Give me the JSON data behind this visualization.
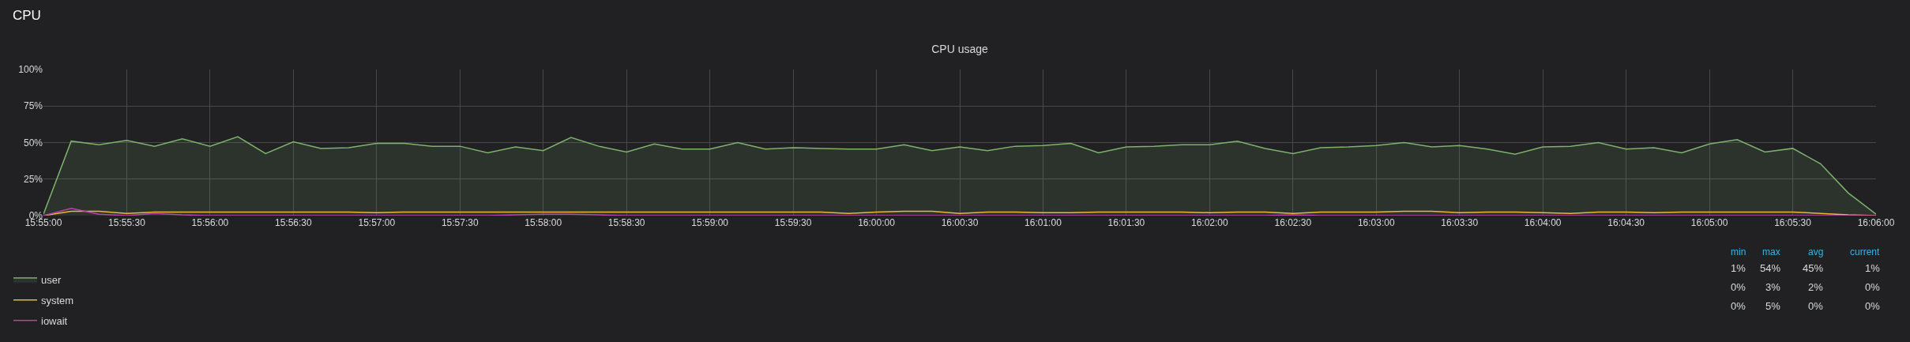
{
  "chart_data": {
    "type": "line",
    "title": "CPU usage",
    "categories": [
      "15:55:00",
      null,
      null,
      "15:55:30",
      null,
      null,
      "15:56:00",
      null,
      null,
      "15:56:30",
      null,
      null,
      "15:57:00",
      null,
      null,
      "15:57:30",
      null,
      null,
      "15:58:00",
      null,
      null,
      "15:58:30",
      null,
      null,
      "15:59:00",
      null,
      null,
      "15:59:30",
      null,
      null,
      "16:00:00",
      null,
      null,
      "16:00:30",
      null,
      null,
      "16:01:00",
      null,
      null,
      "16:01:30",
      null,
      null,
      "16:02:00",
      null,
      null,
      "16:02:30",
      null,
      null,
      "16:03:00",
      null,
      null,
      "16:03:30",
      null,
      null,
      "16:04:00",
      null,
      null,
      "16:04:30",
      null,
      null,
      "16:05:00",
      null,
      null,
      "16:05:30",
      null,
      null,
      "16:06:00"
    ],
    "series": [
      {
        "name": "user",
        "type": "area",
        "color": "#7eb26d",
        "values": [
          1,
          51,
          48.5,
          51.5,
          47.5,
          52.5,
          47.5,
          54,
          42.5,
          50.5,
          46,
          46.5,
          49.5,
          49.5,
          47.5,
          47.5,
          43,
          47,
          44.5,
          53.5,
          47.5,
          43.5,
          49,
          45.5,
          45.5,
          50,
          45.5,
          46.5,
          46,
          45.5,
          45.5,
          48.5,
          44.5,
          47,
          44.5,
          47.5,
          48,
          49.5,
          43,
          47,
          47.5,
          48.5,
          48.5,
          51,
          46,
          42.5,
          46.5,
          47,
          48,
          50,
          47,
          48,
          45.5,
          42,
          47,
          47.5,
          50,
          45.5,
          46.5,
          43,
          49,
          52,
          43.5,
          46,
          35.5,
          15.5,
          1
        ]
      },
      {
        "name": "system",
        "color": "#eab839",
        "values": [
          0,
          3,
          3,
          1.5,
          2.5,
          2.5,
          2.5,
          2.5,
          2.5,
          2.5,
          2.5,
          2.5,
          2,
          2.5,
          2.5,
          2.5,
          2.5,
          2.5,
          2.5,
          2.5,
          2.5,
          2.5,
          2.5,
          2.5,
          2.5,
          2.5,
          2.5,
          2.5,
          2.5,
          1.5,
          2.5,
          3,
          3,
          1.5,
          2.5,
          2.5,
          2,
          2,
          2.5,
          2.5,
          2.5,
          2.5,
          2,
          2.5,
          2.5,
          1.5,
          2.5,
          2.5,
          2.5,
          3,
          3,
          2,
          2.5,
          2.5,
          2,
          1.5,
          2.5,
          2.5,
          2,
          2.5,
          2.5,
          2.5,
          2.5,
          2.5,
          1.5,
          0.5,
          0
        ]
      },
      {
        "name": "iowait",
        "color": "#ba43a9",
        "values": [
          0,
          5,
          1,
          0,
          1.5,
          0.5,
          0,
          0,
          0,
          0,
          0,
          0,
          0,
          0,
          0,
          0,
          0,
          0.5,
          1,
          1,
          0.5,
          0,
          0,
          0,
          0,
          0,
          0,
          0,
          0,
          0,
          0,
          0,
          0,
          0,
          0,
          0,
          0,
          0,
          0,
          0,
          0,
          0,
          0,
          0,
          0,
          0.5,
          0,
          0,
          0,
          0,
          0,
          0,
          0,
          0,
          0,
          0,
          0,
          0,
          0,
          0,
          0,
          0,
          0,
          0,
          0,
          0,
          0
        ]
      }
    ],
    "ylim": [
      0,
      100
    ],
    "yticks": [
      {
        "value": 0,
        "label": "0%"
      },
      {
        "value": 25,
        "label": "25%"
      },
      {
        "value": 50,
        "label": "50%"
      },
      {
        "value": 75,
        "label": "75%"
      },
      {
        "value": 100,
        "label": "100%"
      }
    ],
    "grid": true,
    "legend": "bottom",
    "annotations": [
      "CPU",
      "min",
      "max",
      "avg",
      "current",
      "1%",
      "54%",
      "45%",
      "1%",
      "0%",
      "3%",
      "2%",
      "0%",
      "0%",
      "5%",
      "0%",
      "0%"
    ]
  }
}
